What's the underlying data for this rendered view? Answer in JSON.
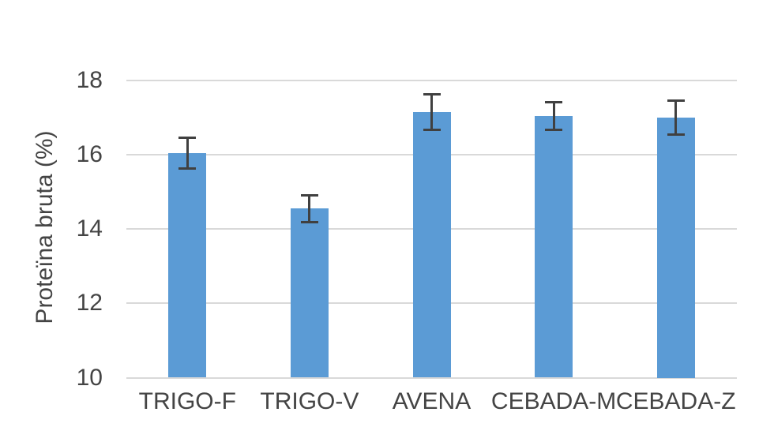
{
  "chart_data": {
    "type": "bar",
    "title": "",
    "xlabel": "",
    "ylabel": "Proteïna bruta (%)",
    "categories": [
      "TRIGO-F",
      "TRIGO-V",
      "AVENA",
      "CEBADA-M",
      "CEBADA-Z"
    ],
    "series": [
      {
        "name": "Proteïna bruta",
        "values": [
          16.05,
          14.55,
          17.15,
          17.05,
          17.0
        ],
        "error_bars": [
          0.45,
          0.4,
          0.5,
          0.4,
          0.48
        ]
      }
    ],
    "ylim": [
      10,
      18
    ],
    "yticks": [
      10,
      12,
      14,
      16,
      18
    ],
    "grid": true,
    "legend": false,
    "colors": {
      "bar": "#5B9BD5",
      "error_bar": "#404040",
      "gridline": "#D9D9D9",
      "axis_line": "#D9D9D9",
      "text": "#444444",
      "background": "#FFFFFF"
    }
  }
}
